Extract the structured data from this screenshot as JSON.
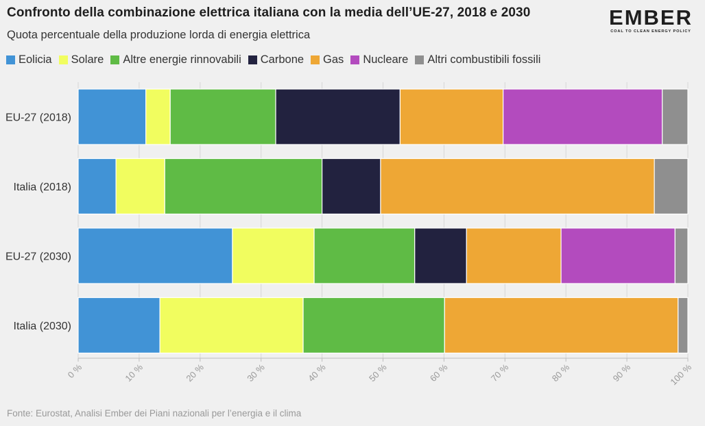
{
  "header": {
    "title": "Confronto della combinazione elettrica italiana con la media dell’UE-27, 2018 e 2030",
    "subtitle": "Quota percentuale della produzione lorda di energia elettrica"
  },
  "logo": {
    "word": "EMBER",
    "tagline": "COAL TO CLEAN ENERGY POLICY"
  },
  "footer": {
    "source": "Fonte: Eurostat, Analisi Ember dei Piani nazionali per l’energia e il clima"
  },
  "chart_data": {
    "type": "bar",
    "orientation": "horizontal",
    "stacked": true,
    "title": "Confronto della combinazione elettrica italiana con la media dell’UE-27, 2018 e 2030",
    "subtitle": "Quota percentuale della produzione lorda di energia elettrica",
    "categories": [
      "EU-27 (2018)",
      "Italia (2018)",
      "EU-27 (2030)",
      "Italia (2030)"
    ],
    "series": [
      {
        "name": "Eolicia",
        "color": "#4193d6",
        "values": [
          11.1,
          6.2,
          25.3,
          13.4
        ]
      },
      {
        "name": "Solare",
        "color": "#f1fd5f",
        "values": [
          4.0,
          8.0,
          13.4,
          23.5
        ]
      },
      {
        "name": "Altre energie rinnovabili",
        "color": "#5fbb45",
        "values": [
          17.3,
          25.8,
          16.5,
          23.2
        ]
      },
      {
        "name": "Carbone",
        "color": "#22223f",
        "values": [
          20.4,
          9.6,
          8.5,
          0
        ]
      },
      {
        "name": "Gas",
        "color": "#eea735",
        "values": [
          16.9,
          44.9,
          15.5,
          38.3
        ]
      },
      {
        "name": "Nucleare",
        "color": "#b34bbe",
        "values": [
          26.1,
          0,
          18.7,
          0
        ]
      },
      {
        "name": "Altri combustibili fossili",
        "color": "#8f8f8f",
        "values": [
          4.2,
          5.5,
          2.1,
          1.6
        ]
      }
    ],
    "xlim": [
      0,
      100
    ],
    "xticks": [
      0,
      10,
      20,
      30,
      40,
      50,
      60,
      70,
      80,
      90,
      100
    ],
    "tick_suffix": " %",
    "grid": true,
    "legend_position": "top"
  }
}
